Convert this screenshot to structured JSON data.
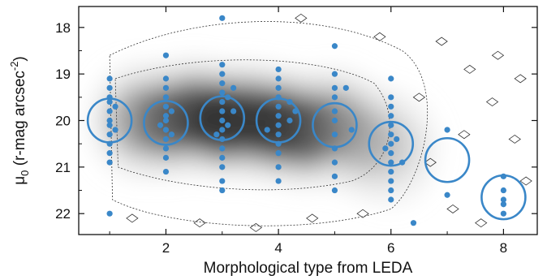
{
  "chart_data": {
    "type": "scatter",
    "xlabel": "Morphological type from LEDA",
    "ylabel": "μ0 (r-mag arcsec-2)",
    "ylabel_parts": {
      "mu": "μ",
      "mu_sub": "0",
      "unit": " (r-mag arcsec",
      "exp": "-2",
      "close": ")"
    },
    "xlim": [
      0.45,
      8.6
    ],
    "ylim": [
      22.45,
      17.55
    ],
    "y_inverted": true,
    "x_ticks": [
      2,
      4,
      6,
      8
    ],
    "y_ticks": [
      18,
      19,
      20,
      21,
      22
    ],
    "grid": false,
    "legend": "none",
    "colors": {
      "points": "#3a87c8",
      "density_dark": "#111111",
      "density_light": "#d9d9d9",
      "contour": "#333333"
    },
    "background_density": {
      "description_free": true,
      "blobs": [
        {
          "x": 1.5,
          "y": 20.0,
          "level": 0.55
        },
        {
          "x": 2.0,
          "y": 20.0,
          "level": 0.75
        },
        {
          "x": 2.5,
          "y": 19.9,
          "level": 0.85
        },
        {
          "x": 3.0,
          "y": 20.0,
          "level": 1.0
        },
        {
          "x": 3.5,
          "y": 20.0,
          "level": 0.9
        },
        {
          "x": 4.0,
          "y": 20.1,
          "level": 0.95
        },
        {
          "x": 4.5,
          "y": 20.2,
          "level": 0.85
        },
        {
          "x": 5.0,
          "y": 20.1,
          "level": 0.6
        },
        {
          "x": 5.5,
          "y": 20.4,
          "level": 0.45
        },
        {
          "x": 6.0,
          "y": 20.6,
          "level": 0.3
        }
      ]
    },
    "series": [
      {
        "points": [
          {
            "x": 1,
            "y": 19.1
          },
          {
            "x": 1,
            "y": 19.3
          },
          {
            "x": 1,
            "y": 19.5
          },
          {
            "x": 1,
            "y": 19.6
          },
          {
            "x": 1,
            "y": 19.8
          },
          {
            "x": 1,
            "y": 20.0
          },
          {
            "x": 1,
            "y": 20.1
          },
          {
            "x": 1,
            "y": 20.3
          },
          {
            "x": 1,
            "y": 20.5
          },
          {
            "x": 1,
            "y": 20.7
          },
          {
            "x": 1,
            "y": 20.9
          },
          {
            "x": 1,
            "y": 22.0
          },
          {
            "x": 1.1,
            "y": 19.7
          },
          {
            "x": 1.1,
            "y": 20.2
          },
          {
            "x": 2,
            "y": 18.6
          },
          {
            "x": 2,
            "y": 19.1
          },
          {
            "x": 2,
            "y": 19.3
          },
          {
            "x": 2,
            "y": 19.5
          },
          {
            "x": 2,
            "y": 19.7
          },
          {
            "x": 2,
            "y": 19.9
          },
          {
            "x": 2,
            "y": 20.0
          },
          {
            "x": 2,
            "y": 20.2
          },
          {
            "x": 2,
            "y": 20.4
          },
          {
            "x": 2,
            "y": 20.6
          },
          {
            "x": 2,
            "y": 20.8
          },
          {
            "x": 2,
            "y": 21.1
          },
          {
            "x": 2.1,
            "y": 19.8
          },
          {
            "x": 2.1,
            "y": 20.3
          },
          {
            "x": 1.9,
            "y": 20.1
          },
          {
            "x": 3,
            "y": 17.8
          },
          {
            "x": 3,
            "y": 18.8
          },
          {
            "x": 3,
            "y": 19.0
          },
          {
            "x": 3,
            "y": 19.2
          },
          {
            "x": 3,
            "y": 19.4
          },
          {
            "x": 3,
            "y": 19.6
          },
          {
            "x": 3,
            "y": 19.8
          },
          {
            "x": 3,
            "y": 20.0
          },
          {
            "x": 3,
            "y": 20.2
          },
          {
            "x": 3,
            "y": 20.4
          },
          {
            "x": 3,
            "y": 20.6
          },
          {
            "x": 3,
            "y": 20.8
          },
          {
            "x": 3,
            "y": 21.0
          },
          {
            "x": 3,
            "y": 21.3
          },
          {
            "x": 3,
            "y": 21.5
          },
          {
            "x": 3.1,
            "y": 19.5
          },
          {
            "x": 3.1,
            "y": 20.1
          },
          {
            "x": 3.2,
            "y": 19.3
          },
          {
            "x": 3.2,
            "y": 19.8
          },
          {
            "x": 2.9,
            "y": 20.3
          },
          {
            "x": 4,
            "y": 18.9
          },
          {
            "x": 4,
            "y": 19.1
          },
          {
            "x": 4,
            "y": 19.3
          },
          {
            "x": 4,
            "y": 19.5
          },
          {
            "x": 4,
            "y": 19.7
          },
          {
            "x": 4,
            "y": 19.9
          },
          {
            "x": 4,
            "y": 20.1
          },
          {
            "x": 4,
            "y": 20.3
          },
          {
            "x": 4,
            "y": 20.5
          },
          {
            "x": 4,
            "y": 20.7
          },
          {
            "x": 4,
            "y": 21.0
          },
          {
            "x": 4,
            "y": 21.3
          },
          {
            "x": 4.2,
            "y": 19.6
          },
          {
            "x": 4.2,
            "y": 20.0
          },
          {
            "x": 4.3,
            "y": 19.8
          },
          {
            "x": 3.8,
            "y": 20.2
          },
          {
            "x": 5,
            "y": 18.4
          },
          {
            "x": 5,
            "y": 19.0
          },
          {
            "x": 5,
            "y": 19.3
          },
          {
            "x": 5,
            "y": 19.5
          },
          {
            "x": 5,
            "y": 19.8
          },
          {
            "x": 5,
            "y": 20.0
          },
          {
            "x": 5,
            "y": 20.3
          },
          {
            "x": 5,
            "y": 20.6
          },
          {
            "x": 5,
            "y": 20.9
          },
          {
            "x": 5,
            "y": 21.2
          },
          {
            "x": 5,
            "y": 21.5
          },
          {
            "x": 5.2,
            "y": 19.3
          },
          {
            "x": 5.3,
            "y": 20.2
          },
          {
            "x": 6,
            "y": 19.1
          },
          {
            "x": 6,
            "y": 19.5
          },
          {
            "x": 6,
            "y": 19.7
          },
          {
            "x": 6,
            "y": 19.9
          },
          {
            "x": 6,
            "y": 20.1
          },
          {
            "x": 6,
            "y": 20.3
          },
          {
            "x": 6,
            "y": 20.5
          },
          {
            "x": 6,
            "y": 20.7
          },
          {
            "x": 6,
            "y": 20.9
          },
          {
            "x": 6,
            "y": 21.1
          },
          {
            "x": 6,
            "y": 21.3
          },
          {
            "x": 6,
            "y": 21.5
          },
          {
            "x": 6,
            "y": 21.7
          },
          {
            "x": 6.1,
            "y": 20.4
          },
          {
            "x": 6.2,
            "y": 20.9
          },
          {
            "x": 5.9,
            "y": 20.6
          },
          {
            "x": 6.4,
            "y": 22.2
          },
          {
            "x": 7,
            "y": 20.2
          },
          {
            "x": 7,
            "y": 21.6
          },
          {
            "x": 8,
            "y": 21.2
          },
          {
            "x": 8,
            "y": 21.5
          },
          {
            "x": 8,
            "y": 21.7
          },
          {
            "x": 8,
            "y": 21.8
          },
          {
            "x": 8,
            "y": 22.0
          }
        ]
      }
    ],
    "medians": [
      {
        "x": 1,
        "y": 20.0
      },
      {
        "x": 2,
        "y": 20.05
      },
      {
        "x": 3,
        "y": 19.95
      },
      {
        "x": 4,
        "y": 20.0
      },
      {
        "x": 5,
        "y": 20.1
      },
      {
        "x": 6,
        "y": 20.5
      },
      {
        "x": 7,
        "y": 20.85
      },
      {
        "x": 8,
        "y": 21.65
      }
    ]
  }
}
